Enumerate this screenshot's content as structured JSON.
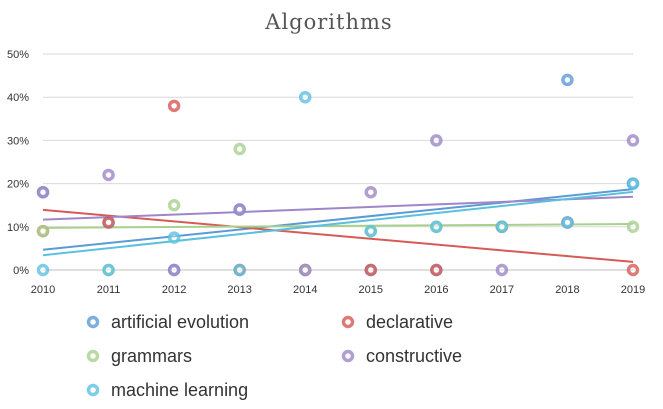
{
  "chart_data": {
    "type": "scatter",
    "title": "Algorithms",
    "xlabel": "",
    "ylabel": "",
    "x": [
      2010,
      2011,
      2012,
      2013,
      2014,
      2015,
      2016,
      2017,
      2018,
      2019
    ],
    "ylim": [
      0,
      50
    ],
    "y_ticks": [
      "0%",
      "10%",
      "20%",
      "30%",
      "40%",
      "50%"
    ],
    "x_ticks": [
      "2010",
      "2011",
      "2012",
      "2013",
      "2014",
      "2015",
      "2016",
      "2017",
      "2018",
      "2019"
    ],
    "grid": true,
    "legend_position": "bottom",
    "series": [
      {
        "name": "artificial evolution",
        "color": "#5b9bd5",
        "values": [
          18,
          11,
          0,
          14,
          0,
          0,
          0,
          10,
          44,
          20
        ],
        "trendline": true
      },
      {
        "name": "declarative",
        "color": "#d65a55",
        "values": [
          9,
          11,
          38,
          0,
          0,
          0,
          0,
          10,
          11,
          0
        ],
        "trendline": true
      },
      {
        "name": "grammars",
        "color": "#a9d18e",
        "values": [
          9,
          0,
          15,
          28,
          0,
          9,
          10,
          10,
          11,
          10
        ],
        "trendline": true
      },
      {
        "name": "constructive",
        "color": "#9e86c8",
        "values": [
          18,
          22,
          0,
          14,
          0,
          18,
          30,
          0,
          11,
          30
        ],
        "trendline": true
      },
      {
        "name": "machine learning",
        "color": "#5bc0de",
        "values": [
          0,
          0,
          7.5,
          0,
          40,
          9,
          10,
          10,
          11,
          20
        ],
        "trendline": true
      }
    ]
  }
}
